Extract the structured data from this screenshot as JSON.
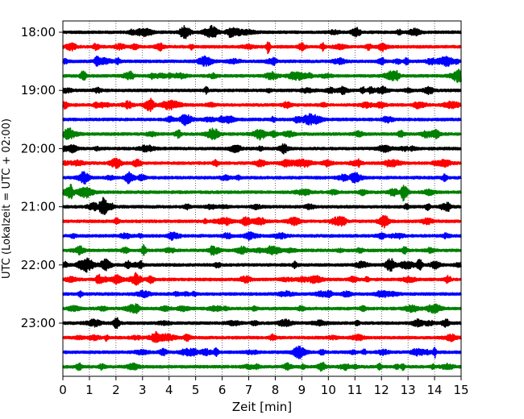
{
  "chart_data": {
    "type": "line",
    "xlabel": "Zeit  [min]",
    "ylabel": "UTC (Lokalzeit = UTC + 02:00)",
    "xlim": [
      0,
      15
    ],
    "x_ticks": [
      "0",
      "1",
      "2",
      "3",
      "4",
      "5",
      "6",
      "7",
      "8",
      "9",
      "10",
      "11",
      "12",
      "13",
      "14",
      "15"
    ],
    "y_ticks": [
      "18:00",
      "19:00",
      "20:00",
      "21:00",
      "22:00",
      "23:00"
    ],
    "grid": "vertical dotted lines at each minute",
    "trace_colors": [
      "#000000",
      "#ff0000",
      "#0000ff",
      "#008000"
    ],
    "traces": [
      {
        "start": "18:00",
        "color": "#000000"
      },
      {
        "start": "18:15",
        "color": "#ff0000"
      },
      {
        "start": "18:30",
        "color": "#0000ff"
      },
      {
        "start": "18:45",
        "color": "#008000"
      },
      {
        "start": "19:00",
        "color": "#000000"
      },
      {
        "start": "19:15",
        "color": "#ff0000"
      },
      {
        "start": "19:30",
        "color": "#0000ff"
      },
      {
        "start": "19:45",
        "color": "#008000"
      },
      {
        "start": "20:00",
        "color": "#000000"
      },
      {
        "start": "20:15",
        "color": "#ff0000"
      },
      {
        "start": "20:30",
        "color": "#0000ff"
      },
      {
        "start": "20:45",
        "color": "#008000"
      },
      {
        "start": "21:00",
        "color": "#000000"
      },
      {
        "start": "21:15",
        "color": "#ff0000"
      },
      {
        "start": "21:30",
        "color": "#0000ff"
      },
      {
        "start": "21:45",
        "color": "#008000"
      },
      {
        "start": "22:00",
        "color": "#000000"
      },
      {
        "start": "22:15",
        "color": "#ff0000"
      },
      {
        "start": "22:30",
        "color": "#0000ff"
      },
      {
        "start": "22:45",
        "color": "#008000"
      },
      {
        "start": "23:00",
        "color": "#000000"
      },
      {
        "start": "23:15",
        "color": "#ff0000"
      },
      {
        "start": "23:30",
        "color": "#0000ff"
      },
      {
        "start": "23:45",
        "color": "#008000"
      }
    ]
  }
}
